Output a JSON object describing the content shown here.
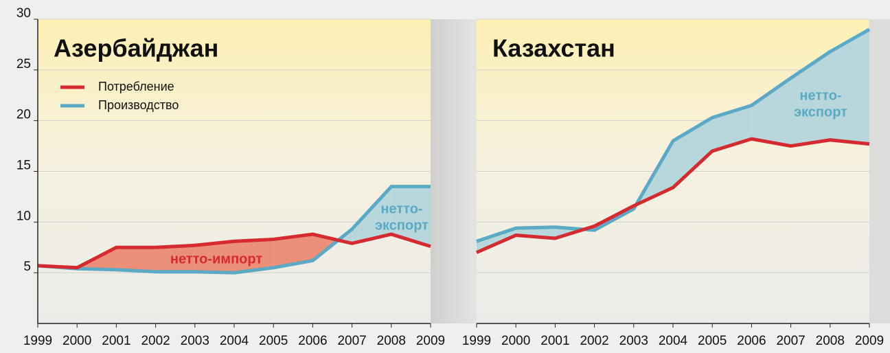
{
  "chart_data": [
    {
      "type": "line",
      "title": "Азербайджан",
      "categories": [
        "1999",
        "2000",
        "2001",
        "2002",
        "2003",
        "2004",
        "2005",
        "2006",
        "2007",
        "2008",
        "2009"
      ],
      "series": [
        {
          "name": "Потребление",
          "color": "#d42a30",
          "values": [
            5.7,
            5.5,
            7.5,
            7.5,
            7.7,
            8.1,
            8.3,
            8.8,
            7.9,
            8.8,
            7.6
          ]
        },
        {
          "name": "Производство",
          "color": "#5ba9c4",
          "values": [
            5.7,
            5.4,
            5.3,
            5.1,
            5.1,
            5.0,
            5.5,
            6.2,
            9.3,
            13.5,
            13.5
          ]
        }
      ],
      "annotations": [
        {
          "lines": [
            "нетто-импорт"
          ],
          "color": "#d42a30"
        },
        {
          "lines": [
            "нетто-",
            "экспорт"
          ],
          "color": "#5ba9c4"
        }
      ],
      "ylim": [
        0,
        30
      ],
      "yticks": [
        5,
        10,
        15,
        20,
        25,
        30
      ],
      "grid": true
    },
    {
      "type": "line",
      "title": "Казахстан",
      "categories": [
        "1999",
        "2000",
        "2001",
        "2002",
        "2003",
        "2004",
        "2005",
        "2006",
        "2007",
        "2008",
        "2009"
      ],
      "series": [
        {
          "color": "#d42a30",
          "values": [
            7.0,
            8.7,
            8.4,
            9.6,
            11.6,
            13.4,
            17.0,
            18.2,
            17.5,
            18.1,
            17.7
          ]
        },
        {
          "color": "#5ba9c4",
          "values": [
            8.1,
            9.4,
            9.5,
            9.2,
            11.3,
            18.0,
            20.3,
            21.5,
            24.2,
            26.8,
            29.0
          ]
        }
      ],
      "annotations": [
        {
          "lines": [
            "нетто-",
            "экспорт"
          ],
          "color": "#5ba9c4"
        }
      ],
      "ylim": [
        0,
        30
      ],
      "yticks": [
        5,
        10,
        15,
        20,
        25,
        30
      ],
      "grid": true
    }
  ]
}
